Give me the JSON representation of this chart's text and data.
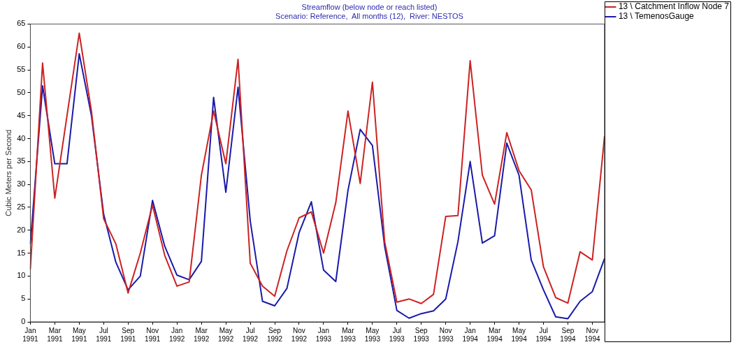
{
  "chart_data": {
    "type": "line",
    "title": "Streamflow (below node or reach listed)",
    "subtitle": "Scenario: Reference,  All months (12),  River: NESTOS",
    "ylabel": "Cubic Meters per Second",
    "categories": [
      "Jan 1991",
      null,
      "Mar 1991",
      null,
      "May 1991",
      null,
      "Jul 1991",
      null,
      "Sep 1991",
      null,
      "Nov 1991",
      null,
      "Jan 1992",
      null,
      "Mar 1992",
      null,
      "May 1992",
      null,
      "Jul 1992",
      null,
      "Sep 1992",
      null,
      "Nov 1992",
      null,
      "Jan 1993",
      null,
      "Mar 1993",
      null,
      "May 1993",
      null,
      "Jul 1993",
      null,
      "Sep 1993",
      null,
      "Nov 1993",
      null,
      "Jan 1994",
      null,
      "Mar 1994",
      null,
      "May 1994",
      null,
      "Jul 1994",
      null,
      "Sep 1994",
      null,
      "Nov 1994",
      null
    ],
    "series": [
      {
        "name": "13 \\ Catchment Inflow Node 7",
        "color": "#cc2222",
        "values": [
          11.5,
          56.5,
          27,
          45,
          63,
          46,
          22.5,
          17,
          6.3,
          15,
          25.5,
          14.5,
          7.8,
          8.7,
          32,
          46,
          34.5,
          57.3,
          12.8,
          7.8,
          5.6,
          15.5,
          22.7,
          24,
          15,
          26,
          46,
          30.2,
          52.3,
          17.5,
          4.3,
          5,
          4,
          6,
          23,
          23.2,
          57,
          32,
          25.7,
          41.3,
          33,
          28.8,
          12,
          5.3,
          4.1,
          15.3,
          13.5,
          40.5
        ]
      },
      {
        "name": "13 \\ TemenosGauge",
        "color": "#1a1aaa",
        "values": [
          17,
          51.5,
          34.5,
          34.5,
          58.5,
          45,
          23.5,
          13,
          7,
          10,
          26.5,
          16.5,
          10.2,
          9.2,
          13.2,
          49,
          28.3,
          51.2,
          22,
          4.5,
          3.5,
          7.3,
          19.5,
          26.2,
          11.3,
          8.8,
          28.7,
          42,
          38.5,
          16.5,
          2.5,
          0.8,
          1.8,
          2.4,
          5,
          17.5,
          35,
          17.2,
          18.8,
          39,
          32,
          13.5,
          7,
          1.1,
          0.7,
          4.5,
          6.6,
          13.8
        ]
      }
    ],
    "ylim": [
      0,
      65
    ],
    "yticks": [
      0,
      5,
      10,
      15,
      20,
      25,
      30,
      35,
      40,
      45,
      50,
      55,
      60,
      65
    ],
    "grid": false,
    "legend": "top right",
    "marker": "none",
    "line_style": "solid"
  }
}
